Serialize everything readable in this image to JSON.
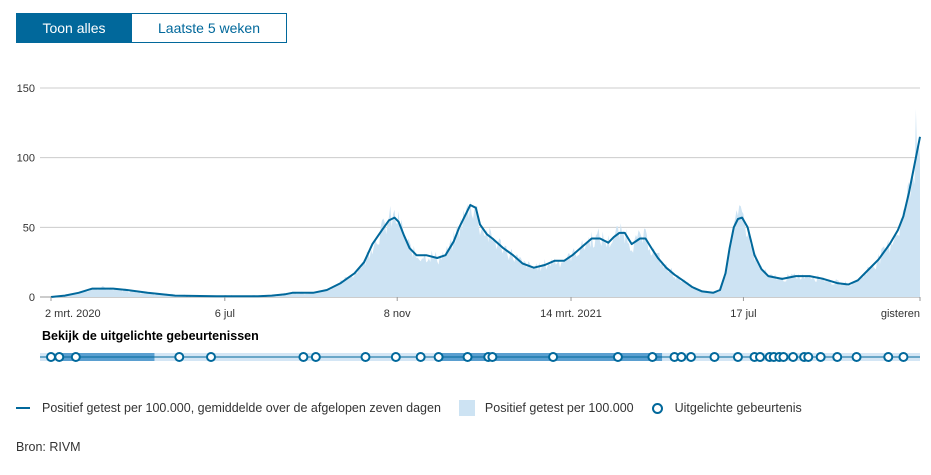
{
  "tabs": {
    "all_label": "Toon alles",
    "recent_label": "Laatste 5 weken"
  },
  "chart_data": {
    "type": "area",
    "title": "",
    "xlabel": "",
    "ylabel": "",
    "ylim": [
      0,
      150
    ],
    "yticks": [
      0,
      50,
      100,
      150
    ],
    "x_tick_labels": [
      {
        "label": "2 mrt. 2020",
        "day": 0
      },
      {
        "label": "6 jul",
        "day": 126
      },
      {
        "label": "8 nov",
        "day": 251
      },
      {
        "label": "14 mrt. 2021",
        "day": 377
      },
      {
        "label": "17 jul",
        "day": 502
      },
      {
        "label": "gisteren",
        "day": 630
      }
    ],
    "x_range_days": [
      0,
      630
    ],
    "series": [
      {
        "name": "Positief getest per 100.000, gemiddelde over de afgelopen zeven dagen",
        "kind": "line",
        "points": [
          [
            0,
            0
          ],
          [
            10,
            1
          ],
          [
            20,
            3
          ],
          [
            30,
            6
          ],
          [
            45,
            6
          ],
          [
            55,
            5
          ],
          [
            70,
            3
          ],
          [
            90,
            1
          ],
          [
            120,
            0.5
          ],
          [
            150,
            0.5
          ],
          [
            160,
            1
          ],
          [
            170,
            2
          ],
          [
            175,
            3
          ],
          [
            190,
            3
          ],
          [
            200,
            5
          ],
          [
            210,
            10
          ],
          [
            220,
            17
          ],
          [
            227,
            25
          ],
          [
            233,
            38
          ],
          [
            240,
            48
          ],
          [
            245,
            55
          ],
          [
            249,
            57
          ],
          [
            252,
            54
          ],
          [
            256,
            44
          ],
          [
            260,
            35
          ],
          [
            265,
            30
          ],
          [
            272,
            30
          ],
          [
            280,
            28
          ],
          [
            286,
            30
          ],
          [
            292,
            40
          ],
          [
            296,
            50
          ],
          [
            300,
            58
          ],
          [
            304,
            66
          ],
          [
            308,
            64
          ],
          [
            311,
            52
          ],
          [
            316,
            45
          ],
          [
            320,
            42
          ],
          [
            328,
            35
          ],
          [
            335,
            30
          ],
          [
            342,
            24
          ],
          [
            350,
            21
          ],
          [
            358,
            23
          ],
          [
            365,
            26
          ],
          [
            372,
            26
          ],
          [
            378,
            30
          ],
          [
            385,
            36
          ],
          [
            392,
            42
          ],
          [
            398,
            42
          ],
          [
            404,
            39
          ],
          [
            408,
            43
          ],
          [
            412,
            46
          ],
          [
            416,
            46
          ],
          [
            421,
            38
          ],
          [
            427,
            42
          ],
          [
            431,
            42
          ],
          [
            436,
            34
          ],
          [
            440,
            28
          ],
          [
            446,
            21
          ],
          [
            452,
            16
          ],
          [
            458,
            12
          ],
          [
            465,
            7
          ],
          [
            472,
            4
          ],
          [
            480,
            3
          ],
          [
            485,
            5
          ],
          [
            489,
            17
          ],
          [
            492,
            35
          ],
          [
            495,
            50
          ],
          [
            498,
            56
          ],
          [
            501,
            57
          ],
          [
            505,
            50
          ],
          [
            510,
            30
          ],
          [
            515,
            20
          ],
          [
            520,
            15
          ],
          [
            530,
            13
          ],
          [
            540,
            15
          ],
          [
            550,
            15
          ],
          [
            560,
            13
          ],
          [
            570,
            10
          ],
          [
            578,
            9
          ],
          [
            585,
            12
          ],
          [
            592,
            19
          ],
          [
            600,
            27
          ],
          [
            608,
            38
          ],
          [
            614,
            48
          ],
          [
            618,
            58
          ],
          [
            622,
            75
          ],
          [
            626,
            95
          ],
          [
            630,
            115
          ]
        ]
      },
      {
        "name": "Positief getest per 100.000",
        "kind": "area",
        "noise_note": "daily values fluctuate around the 7-day average",
        "peak_value": 135
      }
    ]
  },
  "events": {
    "title": "Bekijk de uitgelichte gebeurtenissen",
    "days": [
      0,
      6,
      18,
      93,
      116,
      183,
      192,
      228,
      250,
      268,
      281,
      302,
      317,
      320,
      364,
      411,
      436,
      452,
      457,
      464,
      481,
      498,
      510,
      514,
      521,
      524,
      528,
      531,
      538,
      546,
      549,
      558,
      570,
      584,
      607,
      618
    ]
  },
  "legend": {
    "line_label": "Positief getest per 100.000, gemiddelde over de afgelopen zeven dagen",
    "area_label": "Positief getest per 100.000",
    "events_label": "Uitgelichte gebeurtenis"
  },
  "source": "Bron: RIVM",
  "colors": {
    "line": "#01689b",
    "area": "#cde3f3",
    "grid": "#cccccc",
    "accent": "#01689b"
  }
}
